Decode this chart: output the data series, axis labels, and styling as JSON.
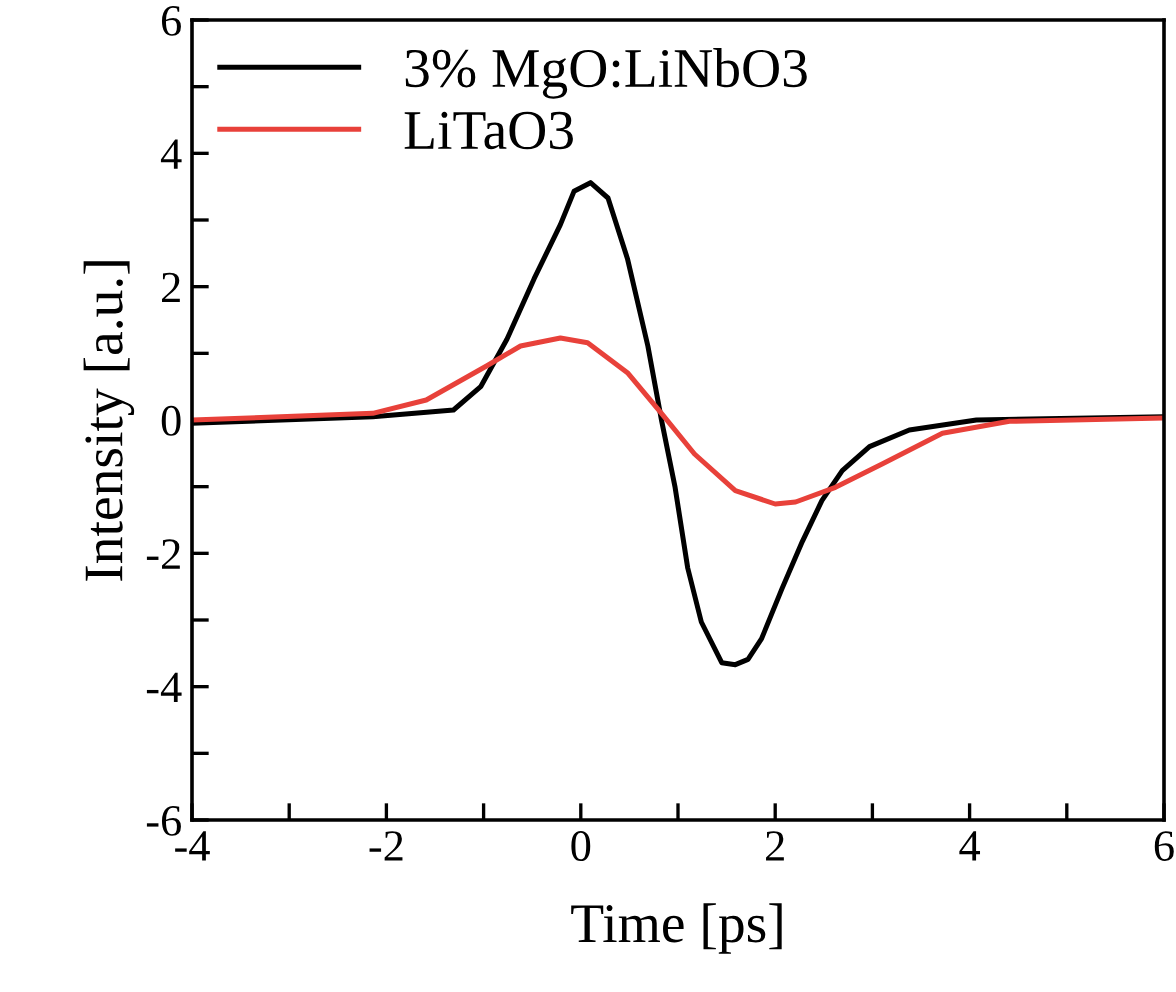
{
  "chart_data": {
    "type": "line",
    "xlabel": "Time [ps]",
    "ylabel": "Intensity [a.u.]",
    "xlim": [
      -4,
      6
    ],
    "ylim": [
      -6,
      6
    ],
    "xticks": [
      -4,
      {
        "value": -3,
        "label": null
      },
      -2,
      {
        "value": -1,
        "label": null
      },
      0,
      {
        "value": 1,
        "label": null
      },
      2,
      {
        "value": 3,
        "label": null
      },
      4,
      {
        "value": 5,
        "label": null
      },
      6
    ],
    "yticks": [
      -6,
      {
        "value": -5,
        "label": null
      },
      -4,
      {
        "value": -3,
        "label": null
      },
      -2,
      {
        "value": -1,
        "label": null
      },
      0,
      {
        "value": 1,
        "label": null
      },
      2,
      {
        "value": 3,
        "label": null
      },
      4,
      {
        "value": 5,
        "label": null
      },
      6
    ],
    "grid": false,
    "legend": "top left",
    "marker": "none",
    "line_style": "solid",
    "series": [
      {
        "name": "3% MgO:LiNbO3",
        "color": "#000000",
        "x": [
          -4,
          -2.14,
          -1.31,
          -1.03,
          -0.76,
          -0.48,
          -0.21,
          -0.07,
          0.1,
          0.28,
          0.48,
          0.69,
          0.83,
          0.97,
          1.1,
          1.24,
          1.45,
          1.59,
          1.72,
          1.86,
          2.07,
          2.28,
          2.48,
          2.69,
          2.97,
          3.38,
          4.07,
          6
        ],
        "values": [
          -0.05,
          0.05,
          0.15,
          0.5,
          1.21,
          2.12,
          2.93,
          3.43,
          3.56,
          3.33,
          2.42,
          1.11,
          0,
          -1.01,
          -2.22,
          -3.03,
          -3.64,
          -3.67,
          -3.59,
          -3.28,
          -2.53,
          -1.82,
          -1.21,
          -0.76,
          -0.4,
          -0.15,
          0,
          0.05
        ]
      },
      {
        "name": "LiTaO3",
        "color": "#e8413a",
        "x": [
          -4,
          -2.14,
          -1.59,
          -0.97,
          -0.62,
          -0.21,
          0.07,
          0.48,
          0.83,
          1.17,
          1.59,
          2.0,
          2.21,
          2.62,
          3.1,
          3.72,
          4.41,
          6
        ],
        "values": [
          0,
          0.1,
          0.3,
          0.81,
          1.11,
          1.23,
          1.16,
          0.71,
          0.1,
          -0.51,
          -1.06,
          -1.26,
          -1.23,
          -1.01,
          -0.66,
          -0.2,
          -0.02,
          0.03
        ]
      }
    ]
  }
}
